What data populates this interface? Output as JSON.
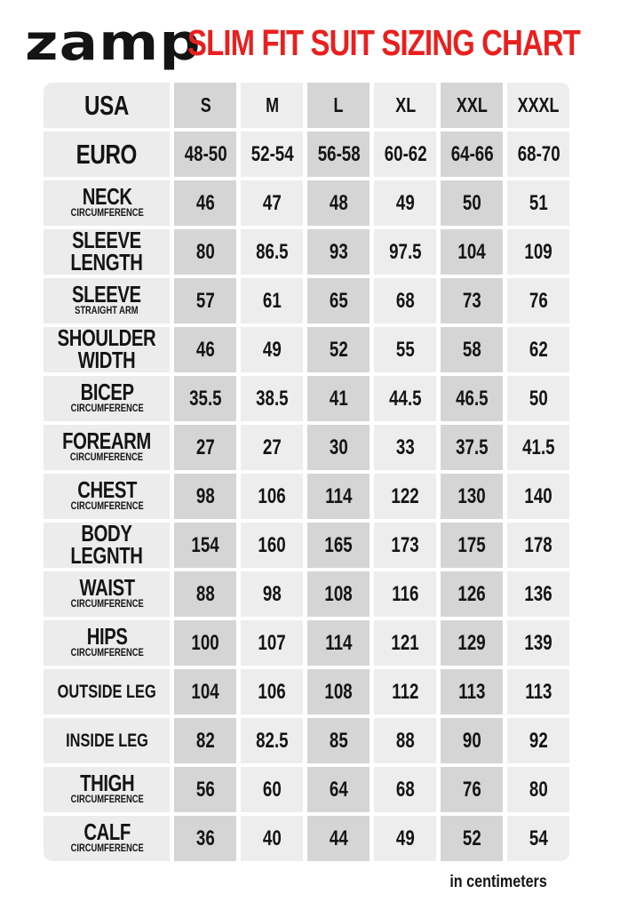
{
  "header": {
    "brand": "zamp",
    "title": "SLIM FIT SUIT SIZING CHART"
  },
  "colors": {
    "title_red": "#e8201f",
    "shaded_column_bg": "#d5d5d5",
    "light_column_bg": "#ededed",
    "label_column_bg": "#ececec",
    "text": "#141414",
    "page_bg": "#ffffff"
  },
  "chart_data": {
    "type": "table",
    "title": "SLIM FIT SUIT SIZING CHART",
    "brand": "zamp",
    "units_note": "in centimeters",
    "columns": [
      "USA",
      "S",
      "M",
      "L",
      "XL",
      "XXL",
      "XXXL"
    ],
    "shaded_columns": [
      "S",
      "L",
      "XXL"
    ],
    "rows": [
      {
        "label_lines": [
          {
            "text": "EURO",
            "size": "xl"
          }
        ],
        "values": [
          "48-50",
          "52-54",
          "56-58",
          "60-62",
          "64-66",
          "68-70"
        ]
      },
      {
        "label_lines": [
          {
            "text": "NECK",
            "size": "lg"
          },
          {
            "text": "CIRCUMFERENCE",
            "size": "sm"
          }
        ],
        "values": [
          "46",
          "47",
          "48",
          "49",
          "50",
          "51"
        ]
      },
      {
        "label_lines": [
          {
            "text": "SLEEVE",
            "size": "lg"
          },
          {
            "text": "LENGTH",
            "size": "lg"
          }
        ],
        "values": [
          "80",
          "86.5",
          "93",
          "97.5",
          "104",
          "109"
        ]
      },
      {
        "label_lines": [
          {
            "text": "SLEEVE",
            "size": "lg"
          },
          {
            "text": "STRAIGHT ARM",
            "size": "sm"
          }
        ],
        "values": [
          "57",
          "61",
          "65",
          "68",
          "73",
          "76"
        ]
      },
      {
        "label_lines": [
          {
            "text": "SHOULDER",
            "size": "lg"
          },
          {
            "text": "WIDTH",
            "size": "lg"
          }
        ],
        "values": [
          "46",
          "49",
          "52",
          "55",
          "58",
          "62"
        ]
      },
      {
        "label_lines": [
          {
            "text": "BICEP",
            "size": "lg"
          },
          {
            "text": "CIRCUMFERENCE",
            "size": "sm"
          }
        ],
        "values": [
          "35.5",
          "38.5",
          "41",
          "44.5",
          "46.5",
          "50"
        ]
      },
      {
        "label_lines": [
          {
            "text": "FOREARM",
            "size": "lg"
          },
          {
            "text": "CIRCUMFERENCE",
            "size": "sm"
          }
        ],
        "values": [
          "27",
          "27",
          "30",
          "33",
          "37.5",
          "41.5"
        ]
      },
      {
        "label_lines": [
          {
            "text": "CHEST",
            "size": "lg"
          },
          {
            "text": "CIRCUMFERENCE",
            "size": "sm"
          }
        ],
        "values": [
          "98",
          "106",
          "114",
          "122",
          "130",
          "140"
        ]
      },
      {
        "label_lines": [
          {
            "text": "BODY",
            "size": "lg"
          },
          {
            "text": "LEGNTH",
            "size": "lg"
          }
        ],
        "values": [
          "154",
          "160",
          "165",
          "173",
          "175",
          "178"
        ]
      },
      {
        "label_lines": [
          {
            "text": "WAIST",
            "size": "lg"
          },
          {
            "text": "CIRCUMFERENCE",
            "size": "sm"
          }
        ],
        "values": [
          "88",
          "98",
          "108",
          "116",
          "126",
          "136"
        ]
      },
      {
        "label_lines": [
          {
            "text": "HIPS",
            "size": "lg"
          },
          {
            "text": "CIRCUMFERENCE",
            "size": "sm"
          }
        ],
        "values": [
          "100",
          "107",
          "114",
          "121",
          "129",
          "139"
        ]
      },
      {
        "label_lines": [
          {
            "text": "OUTSIDE LEG",
            "size": "md"
          }
        ],
        "values": [
          "104",
          "106",
          "108",
          "112",
          "113",
          "113"
        ]
      },
      {
        "label_lines": [
          {
            "text": "INSIDE LEG",
            "size": "md"
          }
        ],
        "values": [
          "82",
          "82.5",
          "85",
          "88",
          "90",
          "92"
        ]
      },
      {
        "label_lines": [
          {
            "text": "THIGH",
            "size": "lg"
          },
          {
            "text": "CIRCUMFERENCE",
            "size": "sm"
          }
        ],
        "values": [
          "56",
          "60",
          "64",
          "68",
          "76",
          "80"
        ]
      },
      {
        "label_lines": [
          {
            "text": "CALF",
            "size": "lg"
          },
          {
            "text": "CIRCUMFERENCE",
            "size": "sm"
          }
        ],
        "values": [
          "36",
          "40",
          "44",
          "49",
          "52",
          "54"
        ]
      }
    ]
  }
}
